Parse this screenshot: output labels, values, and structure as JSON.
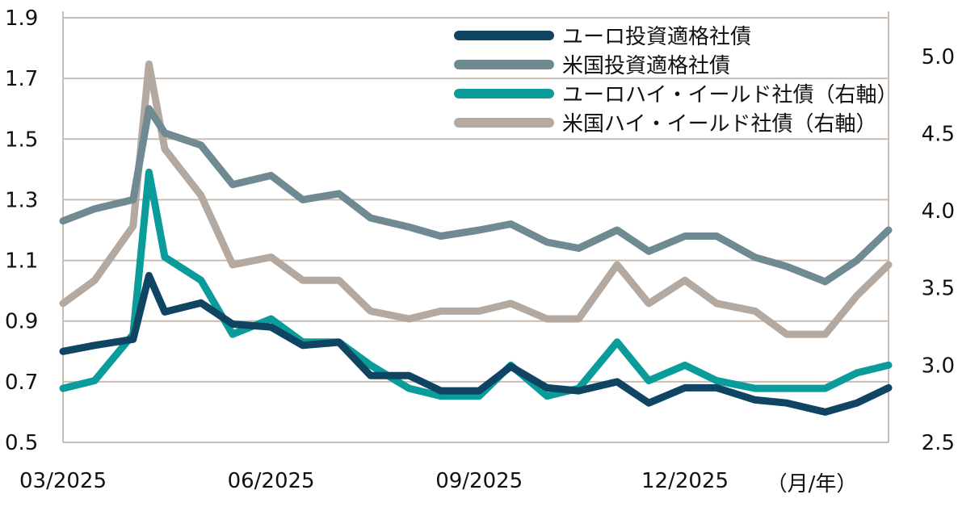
{
  "chart_data": {
    "type": "line",
    "x": [
      "2025-03-01",
      "2025-03-15",
      "2025-04-01",
      "2025-04-08",
      "2025-04-15",
      "2025-05-01",
      "2025-05-15",
      "2025-06-01",
      "2025-06-15",
      "2025-07-01",
      "2025-07-15",
      "2025-08-01",
      "2025-08-15",
      "2025-09-01",
      "2025-09-15",
      "2025-10-01",
      "2025-10-15",
      "2025-11-01",
      "2025-11-15",
      "2025-12-01",
      "2025-12-15",
      "2026-01-01",
      "2026-01-15",
      "2026-02-01",
      "2026-02-15",
      "2026-03-01"
    ],
    "xticks": [
      {
        "date": "2025-03-01",
        "label": "03/2025"
      },
      {
        "date": "2025-06-01",
        "label": "06/2025"
      },
      {
        "date": "2025-09-01",
        "label": "09/2025"
      },
      {
        "date": "2025-12-01",
        "label": "12/2025"
      }
    ],
    "xlim": [
      "2025-03-01",
      "2026-03-01"
    ],
    "xunit_label": "（月/年）",
    "left_axis": {
      "ylim": [
        0.5,
        1.9
      ],
      "ticks": [
        "0.5",
        "0.7",
        "0.9",
        "1.1",
        "1.3",
        "1.5",
        "1.7",
        "1.9"
      ]
    },
    "right_axis": {
      "ylim": [
        2.5,
        5.25
      ],
      "ticks": [
        "2.5",
        "3.0",
        "3.5",
        "4.0",
        "4.5",
        "5.0"
      ]
    },
    "grid": true,
    "legend_position": "top-right",
    "series": [
      {
        "name": "ユーロ投資適格社債",
        "axis": "left",
        "color": "#0f4463",
        "values": [
          0.8,
          0.82,
          0.84,
          1.05,
          0.93,
          0.96,
          0.89,
          0.88,
          0.82,
          0.83,
          0.72,
          0.72,
          0.67,
          0.67,
          0.75,
          0.68,
          0.67,
          0.7,
          0.63,
          0.68,
          0.68,
          0.64,
          0.63,
          0.6,
          0.63,
          0.68
        ]
      },
      {
        "name": "米国投資適格社債",
        "axis": "left",
        "color": "#6f8a92",
        "values": [
          1.23,
          1.27,
          1.3,
          1.6,
          1.52,
          1.48,
          1.35,
          1.38,
          1.3,
          1.32,
          1.24,
          1.21,
          1.18,
          1.2,
          1.22,
          1.16,
          1.14,
          1.2,
          1.13,
          1.18,
          1.18,
          1.11,
          1.08,
          1.03,
          1.1,
          1.2
        ]
      },
      {
        "name": "ユーロハイ・イールド社債（右軸）",
        "axis": "right",
        "color": "#0a9b9b",
        "values": [
          2.85,
          2.9,
          3.2,
          4.25,
          3.7,
          3.55,
          3.2,
          3.3,
          3.15,
          3.15,
          3.0,
          2.85,
          2.8,
          2.8,
          3.0,
          2.8,
          2.85,
          3.15,
          2.9,
          3.0,
          2.9,
          2.85,
          2.85,
          2.85,
          2.95,
          3.0
        ]
      },
      {
        "name": "米国ハイ・イールド社債（右軸）",
        "axis": "right",
        "color": "#b3a9a1",
        "values": [
          3.4,
          3.55,
          3.9,
          4.95,
          4.4,
          4.1,
          3.65,
          3.7,
          3.55,
          3.55,
          3.35,
          3.3,
          3.35,
          3.35,
          3.4,
          3.3,
          3.3,
          3.65,
          3.4,
          3.55,
          3.4,
          3.35,
          3.2,
          3.2,
          3.45,
          3.65
        ]
      }
    ]
  }
}
